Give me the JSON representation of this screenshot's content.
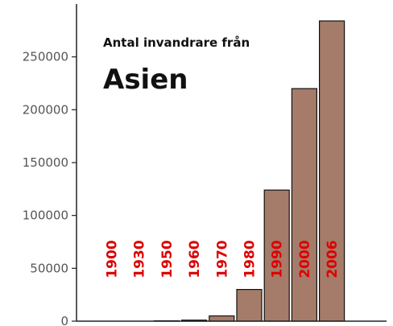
{
  "chart_data": {
    "type": "bar",
    "title": "Antal invandrare från",
    "subtitle": "Asien",
    "xlabel": "",
    "ylabel": "",
    "categories": [
      "1900",
      "1930",
      "1950",
      "1960",
      "1970",
      "1980",
      "1990",
      "2000",
      "2006"
    ],
    "values": [
      0,
      0,
      400,
      1000,
      5000,
      30000,
      124000,
      220000,
      284000
    ],
    "ylim": [
      0,
      300000
    ],
    "yticks": [
      0,
      50000,
      100000,
      150000,
      200000,
      250000
    ],
    "ytick_labels": [
      "0",
      "50000",
      "100000",
      "150000",
      "200000",
      "250000"
    ],
    "grid": false,
    "bar_color": "#a57b69",
    "bar_edge_color": "#111111",
    "label_color": "#dd0000"
  }
}
